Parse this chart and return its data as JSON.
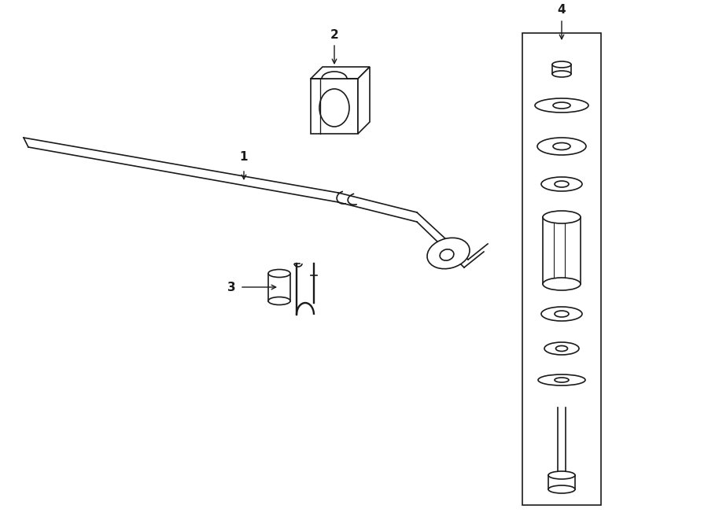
{
  "background_color": "#ffffff",
  "line_color": "#1a1a1a",
  "fig_w": 9.0,
  "fig_h": 6.61,
  "dpi": 100
}
